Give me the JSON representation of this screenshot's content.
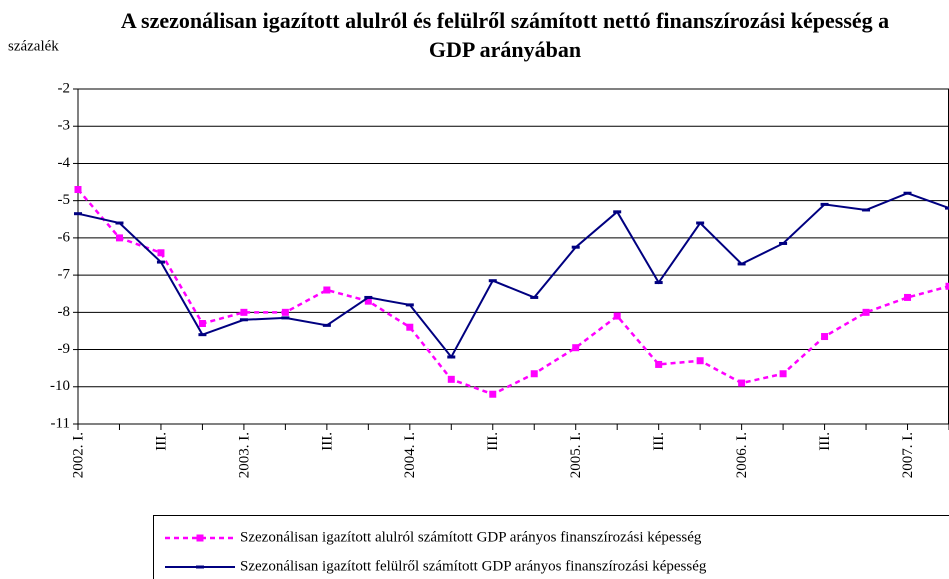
{
  "chart_data": {
    "type": "line",
    "title": "A szezonálisan igazított alulról és felülről számított nettó finanszírozási képesség a GDP arányában",
    "y_label": "százalék",
    "categories": [
      "2002. I.",
      null,
      "III.",
      null,
      "2003. I.",
      null,
      "III.",
      null,
      "2004. I.",
      null,
      "III.",
      null,
      "2005. I.",
      null,
      "III.",
      null,
      "2006. I.",
      null,
      "III.",
      null,
      "2007. I.",
      null
    ],
    "series": [
      {
        "name": "Szezonálisan igazított alulról számított GDP arányos finanszírozási képesség",
        "color": "#ff00ff",
        "values": [
          -4.7,
          -6.0,
          -6.4,
          -8.3,
          -8.0,
          -8.0,
          -7.4,
          -7.7,
          -8.4,
          -9.8,
          -10.2,
          -9.65,
          -8.95,
          -8.1,
          -9.4,
          -9.3,
          -9.9,
          -9.65,
          -8.65,
          -8.0,
          -7.6,
          -7.3
        ]
      },
      {
        "name": "Szezonálisan igazított felülről számított GDP arányos finanszírozási képesség",
        "color": "#000080",
        "values": [
          -5.35,
          -5.6,
          -6.65,
          -8.6,
          -8.2,
          -8.15,
          -8.35,
          -7.6,
          -7.8,
          -9.2,
          -7.15,
          -7.6,
          -6.25,
          -5.3,
          -7.2,
          -5.6,
          -6.7,
          -6.15,
          -5.1,
          -5.25,
          -4.8,
          -5.2
        ]
      }
    ],
    "ylim": [
      -11,
      -2
    ],
    "yticks": [
      -11,
      -10,
      -9,
      -8,
      -7,
      -6,
      -5,
      -4,
      -3,
      -2
    ],
    "grid": true
  }
}
